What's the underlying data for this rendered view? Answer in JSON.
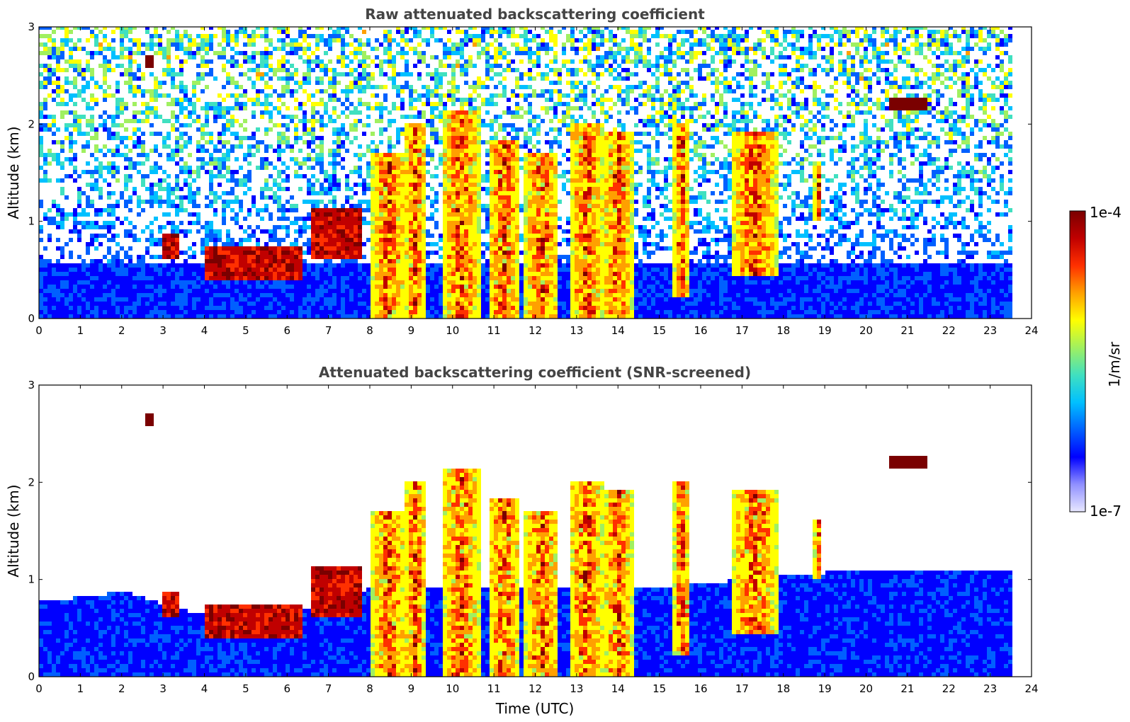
{
  "chart_data": [
    {
      "type": "heatmap",
      "title": "Raw attenuated backscattering coefficient",
      "xlabel": "",
      "ylabel": "Altitude (km)",
      "xlim": [
        0,
        24
      ],
      "ylim": [
        0,
        3
      ],
      "xticks": [
        "0",
        "1",
        "2",
        "3",
        "4",
        "5",
        "6",
        "7",
        "8",
        "9",
        "10",
        "11",
        "12",
        "13",
        "14",
        "15",
        "16",
        "17",
        "18",
        "19",
        "20",
        "21",
        "22",
        "23",
        "24"
      ],
      "yticks": [
        "0",
        "1",
        "2",
        "3"
      ],
      "data_end_time": 23.6,
      "noise_floor_km": 0.55,
      "features": [
        {
          "name": "aerosol-layer-early",
          "t0": 4.0,
          "t1": 6.3,
          "base": 0.35,
          "top": 0.7,
          "kind": "layer"
        },
        {
          "name": "aerosol-patch-3",
          "t0": 2.9,
          "t1": 3.3,
          "base": 0.6,
          "top": 0.85,
          "kind": "layer"
        },
        {
          "name": "rising-layer",
          "t0": 6.5,
          "t1": 7.8,
          "base": 0.6,
          "top": 1.1,
          "kind": "layer"
        },
        {
          "name": "small-cloud-2.6",
          "t0": 2.5,
          "t1": 2.7,
          "base": 2.55,
          "top": 2.7,
          "kind": "cloud"
        },
        {
          "name": "elevated-cloud-21",
          "t0": 20.5,
          "t1": 21.4,
          "base": 2.1,
          "top": 2.25,
          "kind": "cloud"
        },
        {
          "name": "convective-8.5",
          "t0": 8.0,
          "t1": 8.8,
          "base": 0.0,
          "top": 1.7,
          "kind": "column"
        },
        {
          "name": "convective-9",
          "t0": 8.8,
          "t1": 9.3,
          "base": 0.0,
          "top": 2.0,
          "kind": "column"
        },
        {
          "name": "convective-10",
          "t0": 9.7,
          "t1": 10.6,
          "base": 0.0,
          "top": 2.1,
          "kind": "column"
        },
        {
          "name": "convective-11",
          "t0": 10.8,
          "t1": 11.6,
          "base": 0.0,
          "top": 1.8,
          "kind": "column"
        },
        {
          "name": "convective-12",
          "t0": 11.7,
          "t1": 12.5,
          "base": 0.0,
          "top": 1.7,
          "kind": "column"
        },
        {
          "name": "convective-13",
          "t0": 12.8,
          "t1": 13.6,
          "base": 0.0,
          "top": 2.0,
          "kind": "column"
        },
        {
          "name": "convective-14",
          "t0": 13.6,
          "t1": 14.3,
          "base": 0.0,
          "top": 1.9,
          "kind": "column"
        },
        {
          "name": "convective-15.5",
          "t0": 15.3,
          "t1": 15.7,
          "base": 0.2,
          "top": 2.0,
          "kind": "column"
        },
        {
          "name": "convective-17",
          "t0": 16.7,
          "t1": 17.8,
          "base": 0.4,
          "top": 1.9,
          "kind": "column"
        },
        {
          "name": "convective-18.8",
          "t0": 18.7,
          "t1": 18.9,
          "base": 1.0,
          "top": 1.6,
          "kind": "column"
        }
      ]
    },
    {
      "type": "heatmap",
      "title": "Attenuated backscattering coefficient (SNR-screened)",
      "xlabel": "Time (UTC)",
      "ylabel": "Altitude (km)",
      "xlim": [
        0,
        24
      ],
      "ylim": [
        0,
        3
      ],
      "xticks": [
        "0",
        "1",
        "2",
        "3",
        "4",
        "5",
        "6",
        "7",
        "8",
        "9",
        "10",
        "11",
        "12",
        "13",
        "14",
        "15",
        "16",
        "17",
        "18",
        "19",
        "20",
        "21",
        "22",
        "23",
        "24"
      ],
      "yticks": [
        "0",
        "1",
        "2",
        "3"
      ],
      "data_end_time": 23.6,
      "screened": true,
      "boundary_layer_top_km": [
        {
          "t": 0.0,
          "h": 0.75
        },
        {
          "t": 2.0,
          "h": 0.85
        },
        {
          "t": 4.0,
          "h": 0.6
        },
        {
          "t": 6.0,
          "h": 0.6
        },
        {
          "t": 8.0,
          "h": 0.9
        },
        {
          "t": 15.0,
          "h": 0.9
        },
        {
          "t": 19.0,
          "h": 1.05
        },
        {
          "t": 23.6,
          "h": 1.05
        }
      ]
    }
  ],
  "colorbar": {
    "label": "1/m/sr",
    "max_label": "1e-4",
    "min_label": "1e-7",
    "scale": "log",
    "stops": [
      "#e8e8ff",
      "#9090ff",
      "#0000ff",
      "#0060ff",
      "#00c0ff",
      "#40e0c0",
      "#a0f060",
      "#ffff00",
      "#ffa000",
      "#ff3000",
      "#c00000",
      "#7a0000"
    ]
  }
}
